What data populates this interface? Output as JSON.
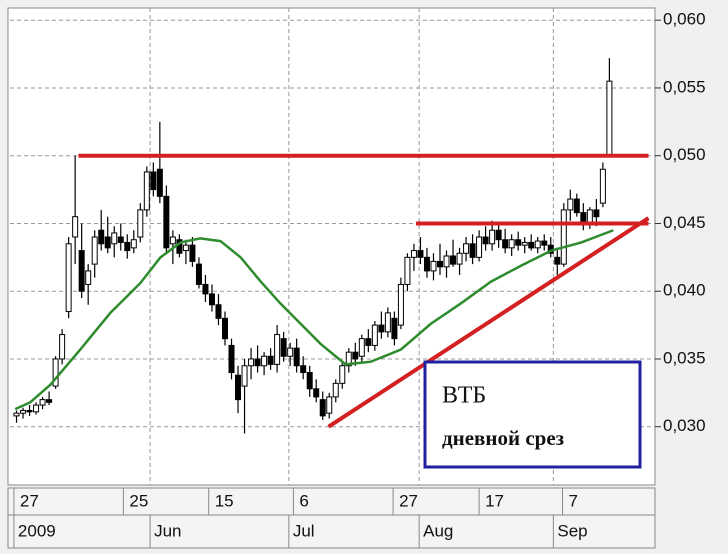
{
  "chart_data": {
    "type": "candlestick",
    "x": [
      0,
      1,
      2,
      3,
      4,
      5,
      6,
      7,
      8,
      9,
      10,
      11,
      12,
      13,
      14,
      15,
      16,
      17,
      18,
      19,
      20,
      21,
      22,
      23,
      24,
      25,
      26,
      27,
      28,
      29,
      30,
      31,
      32,
      33,
      34,
      35,
      36,
      37,
      38,
      39,
      40,
      41,
      42,
      43,
      44,
      45,
      46,
      47,
      48,
      49,
      50,
      51,
      52,
      53,
      54,
      55,
      56,
      57,
      58,
      59,
      60,
      61,
      62,
      63,
      64,
      65,
      66,
      67,
      68,
      69,
      70,
      71,
      72,
      73,
      74,
      75,
      76,
      77,
      78,
      79,
      80,
      81,
      82,
      83,
      84,
      85,
      86,
      87,
      88,
      89,
      90,
      91
    ],
    "open": [
      0.0308,
      0.031,
      0.0312,
      0.0311,
      0.0316,
      0.032,
      0.033,
      0.035,
      0.0385,
      0.044,
      0.043,
      0.0405,
      0.042,
      0.0445,
      0.044,
      0.0435,
      0.044,
      0.0436,
      0.0432,
      0.044,
      0.046,
      0.0488,
      0.049,
      0.047,
      0.0435,
      0.0438,
      0.043,
      0.0434,
      0.042,
      0.0405,
      0.0398,
      0.039,
      0.038,
      0.036,
      0.0338,
      0.033,
      0.0345,
      0.035,
      0.0345,
      0.0352,
      0.0346,
      0.0365,
      0.0352,
      0.0358,
      0.0345,
      0.034,
      0.0328,
      0.032,
      0.031,
      0.0322,
      0.0332,
      0.0345,
      0.0355,
      0.0352,
      0.0365,
      0.036,
      0.0375,
      0.037,
      0.038,
      0.0375,
      0.0405,
      0.0425,
      0.043,
      0.0425,
      0.0415,
      0.0422,
      0.0418,
      0.0426,
      0.042,
      0.0428,
      0.0435,
      0.0425,
      0.044,
      0.0435,
      0.0445,
      0.0438,
      0.0432,
      0.0438,
      0.0434,
      0.0436,
      0.0432,
      0.0437,
      0.0434,
      0.0425,
      0.042,
      0.046,
      0.0468,
      0.0458,
      0.045,
      0.046,
      0.0465,
      0.05
    ],
    "high": [
      0.0312,
      0.0314,
      0.0316,
      0.0318,
      0.0322,
      0.0326,
      0.0352,
      0.0372,
      0.044,
      0.05,
      0.045,
      0.042,
      0.0445,
      0.046,
      0.0455,
      0.0448,
      0.045,
      0.0442,
      0.0445,
      0.0465,
      0.0492,
      0.0495,
      0.0525,
      0.0478,
      0.0445,
      0.0442,
      0.0438,
      0.044,
      0.0425,
      0.0412,
      0.0405,
      0.0398,
      0.0385,
      0.0365,
      0.0345,
      0.035,
      0.0358,
      0.036,
      0.0355,
      0.0358,
      0.0375,
      0.037,
      0.0362,
      0.0365,
      0.0352,
      0.0345,
      0.0335,
      0.0326,
      0.0325,
      0.0335,
      0.0348,
      0.0358,
      0.0362,
      0.0368,
      0.0372,
      0.0378,
      0.0385,
      0.0388,
      0.0385,
      0.041,
      0.0428,
      0.0435,
      0.044,
      0.0432,
      0.0428,
      0.0435,
      0.043,
      0.0438,
      0.0432,
      0.044,
      0.0442,
      0.0445,
      0.0448,
      0.0452,
      0.045,
      0.0446,
      0.0442,
      0.0444,
      0.044,
      0.0442,
      0.044,
      0.0442,
      0.044,
      0.0432,
      0.0465,
      0.0475,
      0.0472,
      0.0465,
      0.0462,
      0.0468,
      0.0495,
      0.0572
    ],
    "low": [
      0.0303,
      0.0306,
      0.0308,
      0.0309,
      0.0313,
      0.0316,
      0.0328,
      0.0346,
      0.038,
      0.042,
      0.0395,
      0.039,
      0.041,
      0.043,
      0.0428,
      0.0425,
      0.043,
      0.0424,
      0.0428,
      0.0436,
      0.0455,
      0.047,
      0.0465,
      0.0428,
      0.042,
      0.0425,
      0.042,
      0.0418,
      0.0402,
      0.0392,
      0.0385,
      0.0375,
      0.036,
      0.0335,
      0.031,
      0.0295,
      0.0335,
      0.034,
      0.0338,
      0.0342,
      0.034,
      0.0348,
      0.0345,
      0.034,
      0.0335,
      0.0322,
      0.0318,
      0.0305,
      0.0306,
      0.0318,
      0.0328,
      0.034,
      0.0345,
      0.0348,
      0.0355,
      0.0356,
      0.0365,
      0.0366,
      0.036,
      0.0372,
      0.04,
      0.0415,
      0.042,
      0.041,
      0.0408,
      0.0412,
      0.041,
      0.0418,
      0.0412,
      0.0422,
      0.042,
      0.0422,
      0.043,
      0.043,
      0.0432,
      0.0428,
      0.0426,
      0.043,
      0.0428,
      0.043,
      0.0428,
      0.043,
      0.0425,
      0.0412,
      0.0418,
      0.0452,
      0.0455,
      0.0445,
      0.0446,
      0.0448,
      0.0462,
      0.05
    ],
    "close": [
      0.031,
      0.0312,
      0.0311,
      0.0316,
      0.032,
      0.0318,
      0.035,
      0.0368,
      0.0435,
      0.0455,
      0.04,
      0.0415,
      0.044,
      0.0435,
      0.0432,
      0.0443,
      0.0436,
      0.043,
      0.0438,
      0.046,
      0.0488,
      0.0475,
      0.047,
      0.0432,
      0.044,
      0.0428,
      0.0434,
      0.0422,
      0.0405,
      0.0398,
      0.039,
      0.038,
      0.0365,
      0.034,
      0.032,
      0.0345,
      0.035,
      0.0345,
      0.0352,
      0.0346,
      0.0368,
      0.0352,
      0.0358,
      0.0345,
      0.034,
      0.0328,
      0.0322,
      0.0308,
      0.0322,
      0.0332,
      0.0345,
      0.0355,
      0.035,
      0.0365,
      0.036,
      0.0375,
      0.037,
      0.0384,
      0.0365,
      0.0405,
      0.0425,
      0.043,
      0.0425,
      0.0415,
      0.0422,
      0.0418,
      0.0426,
      0.042,
      0.0428,
      0.0435,
      0.0425,
      0.044,
      0.0435,
      0.0445,
      0.0438,
      0.0432,
      0.0438,
      0.0434,
      0.0436,
      0.0432,
      0.0437,
      0.0434,
      0.0428,
      0.042,
      0.046,
      0.0468,
      0.0458,
      0.045,
      0.046,
      0.0455,
      0.049,
      0.0555
    ],
    "up_color": "#ffffff",
    "down_color": "#000000",
    "moving_average": {
      "color": "#2e8b2e",
      "x": [
        -0.2,
        2.1,
        5.2,
        9.8,
        14.4,
        19,
        22.1,
        25.2,
        28.2,
        31.3,
        34.4,
        37.5,
        40.5,
        43.6,
        46.7,
        50.5,
        54.4,
        59,
        63.6,
        68.2,
        72.8,
        77.5,
        82.1,
        86.7,
        91.6
      ],
      "values": [
        0.0313,
        0.0318,
        0.0331,
        0.0357,
        0.0384,
        0.0406,
        0.0425,
        0.0436,
        0.0439,
        0.0437,
        0.0425,
        0.0407,
        0.0391,
        0.0376,
        0.0361,
        0.0346,
        0.0348,
        0.0357,
        0.0376,
        0.0391,
        0.0407,
        0.0419,
        0.043,
        0.0436,
        0.0445
      ]
    },
    "trend_lines": [
      {
        "color": "#d42020",
        "x": [
          9.5,
          97
        ],
        "y": [
          0.05,
          0.05
        ]
      },
      {
        "color": "#d42020",
        "x": [
          61.3,
          97
        ],
        "y": [
          0.045,
          0.045
        ]
      },
      {
        "color": "#d42020",
        "x": [
          47.9,
          97
        ],
        "y": [
          0.03,
          0.0454
        ]
      }
    ],
    "annotation": {
      "title": "ВТБ",
      "subtitle": "дневной срез"
    },
    "xlim": [
      -1,
      98
    ],
    "ylim": [
      0.0257,
      0.0609
    ],
    "yticks": [
      {
        "value": 0.03,
        "label": "0,030"
      },
      {
        "value": 0.035,
        "label": "0,035"
      },
      {
        "value": 0.04,
        "label": "0,040"
      },
      {
        "value": 0.045,
        "label": "0,045"
      },
      {
        "value": 0.05,
        "label": "0,050"
      },
      {
        "value": 0.055,
        "label": "0,055"
      },
      {
        "value": 0.06,
        "label": "0,060"
      }
    ],
    "xticks": [
      {
        "value": -0.4,
        "label": "27"
      },
      {
        "value": 16.4,
        "label": "25"
      },
      {
        "value": 29.5,
        "label": "15"
      },
      {
        "value": 42.5,
        "label": "6"
      },
      {
        "value": 57.8,
        "label": "27"
      },
      {
        "value": 71,
        "label": "17"
      },
      {
        "value": 83.8,
        "label": "7"
      }
    ],
    "month_ticks": [
      {
        "value": -0.4,
        "label": "2009"
      },
      {
        "value": 20.5,
        "label": "Jun"
      },
      {
        "value": 41.8,
        "label": "Jul"
      },
      {
        "value": 61.8,
        "label": "Aug"
      },
      {
        "value": 82.4,
        "label": "Sep"
      }
    ],
    "grid": true
  }
}
